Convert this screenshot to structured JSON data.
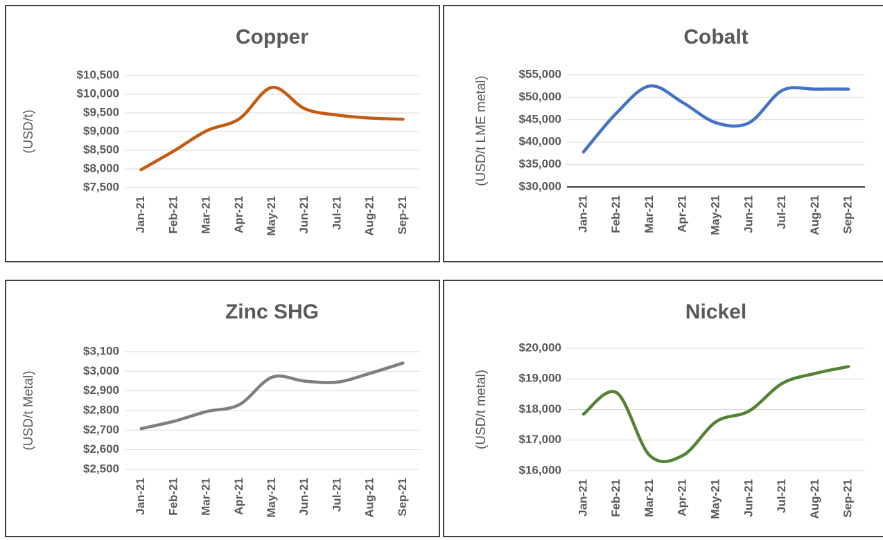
{
  "chart_data": [
    {
      "type": "line",
      "title": "Copper",
      "y_label": "(USD/t)",
      "categories": [
        "Jan-21",
        "Feb-21",
        "Mar-21",
        "Apr-21",
        "May-21",
        "Jun-21",
        "Jul-21",
        "Aug-21",
        "Sep-21"
      ],
      "values": [
        7980,
        8480,
        9020,
        9340,
        10180,
        9610,
        9440,
        9360,
        9330
      ],
      "color": "#c55a11",
      "ylim": [
        7500,
        10500
      ],
      "yticks": [
        {
          "value": 7500,
          "label": "$7,500"
        },
        {
          "value": 8000,
          "label": "$8,000"
        },
        {
          "value": 8500,
          "label": "$8,500"
        },
        {
          "value": 9000,
          "label": "$9,000"
        },
        {
          "value": 9500,
          "label": "$9,500"
        },
        {
          "value": 10000,
          "label": "$10,000"
        },
        {
          "value": 10500,
          "label": "$10,500"
        }
      ],
      "grid": true,
      "x_axis_line": false
    },
    {
      "type": "line",
      "title": "Cobalt",
      "y_label": "(USD/t LME metal)",
      "categories": [
        "Jan-21",
        "Feb-21",
        "Mar-21",
        "Apr-21",
        "May-21",
        "Jun-21",
        "Jul-21",
        "Aug-21",
        "Sep-21"
      ],
      "values": [
        37800,
        46500,
        52500,
        48800,
        44300,
        44300,
        51500,
        51800,
        51800
      ],
      "color": "#4472c4",
      "ylim": [
        30000,
        55000
      ],
      "yticks": [
        {
          "value": 30000,
          "label": "$30,000"
        },
        {
          "value": 35000,
          "label": "$35,000"
        },
        {
          "value": 40000,
          "label": "$40,000"
        },
        {
          "value": 45000,
          "label": "$45,000"
        },
        {
          "value": 50000,
          "label": "$50,000"
        },
        {
          "value": 55000,
          "label": "$55,000"
        }
      ],
      "grid": true,
      "x_axis_line": true
    },
    {
      "type": "line",
      "title": "Zinc SHG",
      "y_label": "(USD/t Metal)",
      "categories": [
        "Jan-21",
        "Feb-21",
        "Mar-21",
        "Apr-21",
        "May-21",
        "Jun-21",
        "Jul-21",
        "Aug-21",
        "Sep-21"
      ],
      "values": [
        2708,
        2745,
        2795,
        2830,
        2970,
        2950,
        2945,
        2990,
        3042
      ],
      "color": "#7f7f7f",
      "ylim": [
        2500,
        3100
      ],
      "yticks": [
        {
          "value": 2500,
          "label": "$2,500"
        },
        {
          "value": 2600,
          "label": "$2,600"
        },
        {
          "value": 2700,
          "label": "$2,700"
        },
        {
          "value": 2800,
          "label": "$2,800"
        },
        {
          "value": 2900,
          "label": "$2,900"
        },
        {
          "value": 3000,
          "label": "$3,000"
        },
        {
          "value": 3100,
          "label": "$3,100"
        }
      ],
      "grid": true,
      "x_axis_line": false
    },
    {
      "type": "line",
      "title": "Nickel",
      "y_label": "(USD/t metal)",
      "categories": [
        "Jan-21",
        "Feb-21",
        "Mar-21",
        "Apr-21",
        "May-21",
        "Jun-21",
        "Jul-21",
        "Aug-21",
        "Sep-21"
      ],
      "values": [
        17850,
        18550,
        16500,
        16500,
        17600,
        17950,
        18850,
        19180,
        19400
      ],
      "color": "#548235",
      "ylim": [
        16000,
        20000
      ],
      "yticks": [
        {
          "value": 16000,
          "label": "$16,000"
        },
        {
          "value": 17000,
          "label": "$17,000"
        },
        {
          "value": 18000,
          "label": "$18,000"
        },
        {
          "value": 19000,
          "label": "$19,000"
        },
        {
          "value": 20000,
          "label": "$20,000"
        }
      ],
      "grid": true,
      "x_axis_line": false
    }
  ]
}
